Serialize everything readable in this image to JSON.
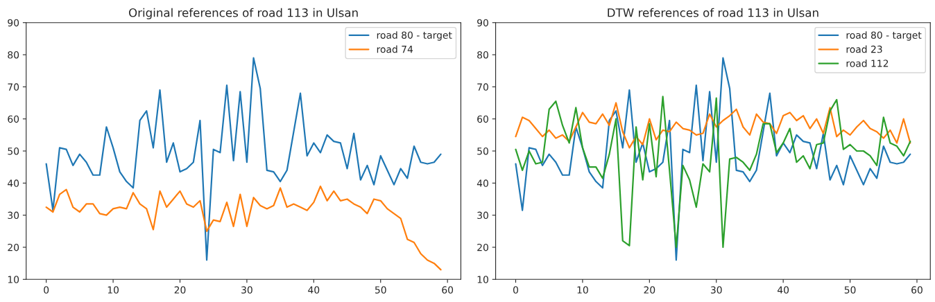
{
  "chart_data": [
    {
      "type": "line",
      "title": "Original references of road 113 in Ulsan",
      "x": [
        0,
        1,
        2,
        3,
        4,
        5,
        6,
        7,
        8,
        9,
        10,
        11,
        12,
        13,
        14,
        15,
        16,
        17,
        18,
        19,
        20,
        21,
        22,
        23,
        24,
        25,
        26,
        27,
        28,
        29,
        30,
        31,
        32,
        33,
        34,
        35,
        36,
        37,
        38,
        39,
        40,
        41,
        42,
        43,
        44,
        45,
        46,
        47,
        48,
        49,
        50,
        51,
        52,
        53,
        54,
        55,
        56,
        57,
        58,
        59
      ],
      "series": [
        {
          "name": "road 80 - target",
          "color": "#1f77b4",
          "values": [
            46,
            31.5,
            51,
            50.5,
            45.5,
            49,
            46.5,
            42.5,
            42.5,
            57.5,
            51,
            43.5,
            40.5,
            38.5,
            59.5,
            62.5,
            51,
            69,
            46.5,
            52.5,
            43.5,
            44.5,
            46.5,
            59.5,
            16,
            50.5,
            49.5,
            70.5,
            47,
            68.5,
            46.5,
            79,
            69.5,
            44,
            43.5,
            40.5,
            44,
            56,
            68,
            48.5,
            52.5,
            49.5,
            55,
            53,
            52.5,
            44.5,
            55.5,
            41,
            45.5,
            39.5,
            48.5,
            44,
            39.5,
            44.5,
            41.5,
            51.5,
            46.5,
            46,
            46.5,
            49
          ]
        },
        {
          "name": "road 74",
          "color": "#ff7f0e",
          "values": [
            32.5,
            31,
            36.5,
            38,
            32.5,
            31,
            33.5,
            33.5,
            30.5,
            30,
            32,
            32.5,
            32,
            37,
            33.5,
            32,
            25.5,
            37.5,
            32.5,
            35,
            37.5,
            33.5,
            32.5,
            34.5,
            25,
            28.5,
            28,
            34,
            26.5,
            36.5,
            26.5,
            35.5,
            33,
            32,
            33,
            38.5,
            32.5,
            33.5,
            32.5,
            31.5,
            34,
            39,
            34.5,
            37.5,
            34.5,
            35,
            33.5,
            32.5,
            30.5,
            35,
            34.5,
            32,
            30.5,
            29,
            22.5,
            21.5,
            18,
            16,
            15,
            13
          ]
        }
      ],
      "xlim": [
        -3,
        62
      ],
      "xticks": [
        0,
        10,
        20,
        30,
        40,
        50,
        60
      ],
      "ylim": [
        10,
        90
      ],
      "yticks": [
        10,
        20,
        30,
        40,
        50,
        60,
        70,
        80,
        90
      ],
      "legend": "top right",
      "grid": false
    },
    {
      "type": "line",
      "title": "DTW references of road 113 in Ulsan",
      "x": [
        0,
        1,
        2,
        3,
        4,
        5,
        6,
        7,
        8,
        9,
        10,
        11,
        12,
        13,
        14,
        15,
        16,
        17,
        18,
        19,
        20,
        21,
        22,
        23,
        24,
        25,
        26,
        27,
        28,
        29,
        30,
        31,
        32,
        33,
        34,
        35,
        36,
        37,
        38,
        39,
        40,
        41,
        42,
        43,
        44,
        45,
        46,
        47,
        48,
        49,
        50,
        51,
        52,
        53,
        54,
        55,
        56,
        57,
        58,
        59
      ],
      "series": [
        {
          "name": "road 80 - target",
          "color": "#1f77b4",
          "values": [
            46,
            31.5,
            51,
            50.5,
            45.5,
            49,
            46.5,
            42.5,
            42.5,
            57.5,
            51,
            43.5,
            40.5,
            38.5,
            59.5,
            62.5,
            51,
            69,
            46.5,
            52.5,
            43.5,
            44.5,
            46.5,
            59.5,
            16,
            50.5,
            49.5,
            70.5,
            47,
            68.5,
            46.5,
            79,
            69.5,
            44,
            43.5,
            40.5,
            44,
            56,
            68,
            48.5,
            52.5,
            49.5,
            55,
            53,
            52.5,
            44.5,
            55.5,
            41,
            45.5,
            39.5,
            48.5,
            44,
            39.5,
            44.5,
            41.5,
            51.5,
            46.5,
            46,
            46.5,
            49
          ]
        },
        {
          "name": "road 23",
          "color": "#ff7f0e",
          "values": [
            54.5,
            60.5,
            59.5,
            57,
            54.5,
            56.5,
            54,
            55,
            53,
            57.5,
            62,
            59,
            58.5,
            61.5,
            58,
            65,
            56,
            51,
            54.5,
            52,
            60,
            53.5,
            56.5,
            56,
            59,
            57,
            56.5,
            55,
            55.5,
            61.5,
            57.5,
            59.5,
            61,
            63,
            57.5,
            55,
            61.5,
            59,
            58.5,
            55.5,
            61,
            62,
            59.5,
            61,
            57,
            60,
            55.5,
            63.5,
            54.5,
            56.5,
            55,
            57.5,
            59.5,
            57,
            56,
            54,
            56.5,
            52.5,
            60,
            52.5
          ]
        },
        {
          "name": "road 112",
          "color": "#2ca02c",
          "values": [
            50.5,
            44,
            50,
            46,
            46.5,
            63,
            65.5,
            58,
            52.5,
            63.5,
            51,
            45,
            45,
            41.5,
            49,
            60,
            22,
            20.5,
            57.5,
            41,
            58.5,
            42,
            67,
            44,
            20,
            45.5,
            41,
            32.5,
            46,
            43.5,
            66.5,
            20,
            47.5,
            48,
            46.5,
            44,
            49,
            58.5,
            58.5,
            49.5,
            52.5,
            57,
            46.5,
            48.5,
            44.5,
            52,
            52.5,
            62.5,
            66,
            50.5,
            52,
            50,
            50,
            48.5,
            45.5,
            60.5,
            52.5,
            51.5,
            48.5,
            53
          ]
        }
      ],
      "xlim": [
        -3,
        62
      ],
      "xticks": [
        0,
        10,
        20,
        30,
        40,
        50,
        60
      ],
      "ylim": [
        10,
        90
      ],
      "yticks": [
        10,
        20,
        30,
        40,
        50,
        60,
        70,
        80,
        90
      ],
      "legend": "top right",
      "grid": false
    }
  ]
}
